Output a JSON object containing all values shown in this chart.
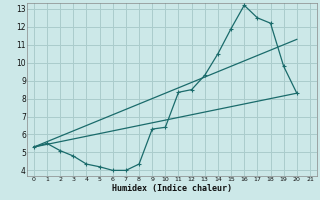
{
  "xlabel": "Humidex (Indice chaleur)",
  "bg_color": "#cce8e8",
  "grid_color": "#aacccc",
  "line_color": "#1a6b6b",
  "xlim": [
    -0.5,
    21.5
  ],
  "ylim": [
    3.7,
    13.3
  ],
  "xticks": [
    0,
    1,
    2,
    3,
    4,
    5,
    6,
    7,
    8,
    9,
    10,
    11,
    12,
    13,
    14,
    15,
    16,
    17,
    18,
    19,
    20,
    21
  ],
  "yticks": [
    4,
    5,
    6,
    7,
    8,
    9,
    10,
    11,
    12,
    13
  ],
  "line1_x": [
    0,
    1,
    2,
    3,
    4,
    5,
    6,
    7,
    8,
    9,
    10,
    11,
    12,
    13,
    14,
    15,
    16,
    17,
    18,
    19,
    20
  ],
  "line1_y": [
    5.3,
    5.5,
    5.1,
    4.8,
    4.35,
    4.2,
    4.0,
    4.0,
    4.35,
    6.3,
    6.4,
    8.35,
    8.5,
    9.3,
    10.5,
    11.9,
    13.2,
    12.5,
    12.2,
    9.8,
    8.3
  ],
  "line2_x": [
    0,
    20
  ],
  "line2_y": [
    5.3,
    8.3
  ],
  "line3_x": [
    0,
    20
  ],
  "line3_y": [
    5.3,
    11.3
  ]
}
